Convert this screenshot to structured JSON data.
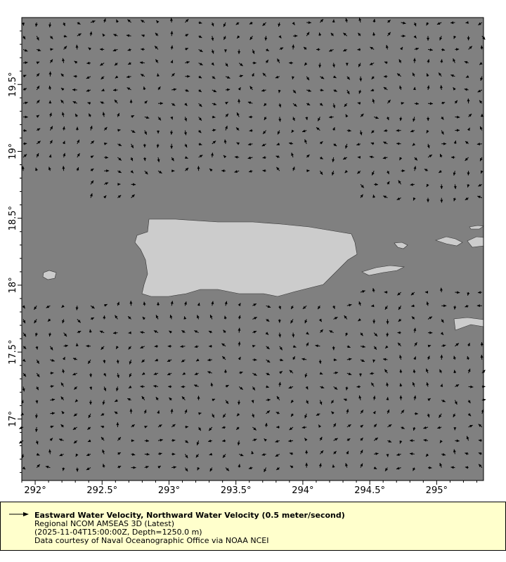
{
  "map": {
    "lon_range": [
      291.9,
      295.35
    ],
    "lat_range": [
      16.54,
      20.0
    ],
    "lon_ticks": [
      {
        "value": 292,
        "label": "292°"
      },
      {
        "value": 292.5,
        "label": "292.5°"
      },
      {
        "value": 293,
        "label": "293°"
      },
      {
        "value": 293.5,
        "label": "293.5°"
      },
      {
        "value": 294,
        "label": "294°"
      },
      {
        "value": 294.5,
        "label": "294.5°"
      },
      {
        "value": 295,
        "label": "295°"
      }
    ],
    "lat_ticks": [
      {
        "value": 17,
        "label": "17°"
      },
      {
        "value": 17.5,
        "label": "17.5°"
      },
      {
        "value": 18,
        "label": "18°"
      },
      {
        "value": 18.5,
        "label": "18.5°"
      },
      {
        "value": 19,
        "label": "19°"
      },
      {
        "value": 19.5,
        "label": "19.5°"
      }
    ],
    "colors": {
      "ocean": "#808080",
      "land": "#cccccc",
      "vector": "#000000",
      "legend_bg": "#ffffcc"
    }
  },
  "legend": {
    "title": "Eastward Water Velocity, Northward Water Velocity (0.5 meter/second)",
    "dataset": "Regional NCOM AMSEAS 3D (Latest)",
    "time_depth": "(2025-11-04T15:00:00Z, Depth=1250.0 m)",
    "credit": "Data courtesy of Naval Oceanographic Office via NOAA NCEI"
  }
}
